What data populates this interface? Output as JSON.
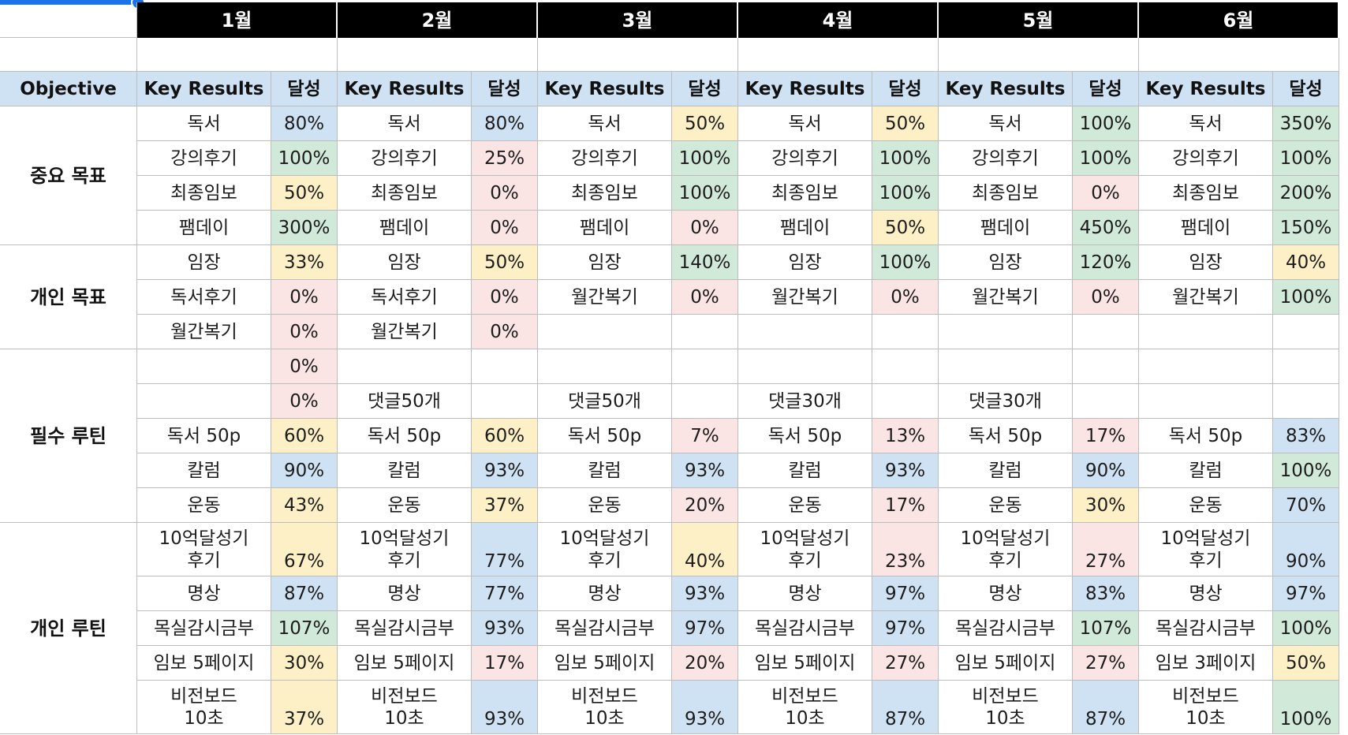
{
  "months": [
    "1월",
    "2월",
    "3월",
    "4월",
    "5월",
    "6월"
  ],
  "headers": {
    "objective": "Objective",
    "key_results": "Key Results",
    "achievement": "달성"
  },
  "colors": {
    "blue": "#cfe2f3",
    "green": "#d1e9d9",
    "yellow": "#fdf0c6",
    "pink": "#fbe4e4",
    "none": "#ffffff",
    "header": "#000000"
  },
  "groups": [
    {
      "name": "중요 목표",
      "rows": [
        0,
        3
      ]
    },
    {
      "name": "개인 목표",
      "rows": [
        4,
        6
      ]
    },
    {
      "name": "필수 루틴",
      "rows": [
        7,
        11
      ]
    },
    {
      "name": "개인 루틴",
      "rows": [
        12,
        16
      ]
    }
  ],
  "rows": [
    {
      "tall": false,
      "cells": [
        [
          "독서",
          "80%",
          "blue"
        ],
        [
          "독서",
          "80%",
          "blue"
        ],
        [
          "독서",
          "50%",
          "yellow"
        ],
        [
          "독서",
          "50%",
          "yellow"
        ],
        [
          "독서",
          "100%",
          "green"
        ],
        [
          "독서",
          "350%",
          "green"
        ]
      ]
    },
    {
      "tall": false,
      "cells": [
        [
          "강의후기",
          "100%",
          "green"
        ],
        [
          "강의후기",
          "25%",
          "pink"
        ],
        [
          "강의후기",
          "100%",
          "green"
        ],
        [
          "강의후기",
          "100%",
          "green"
        ],
        [
          "강의후기",
          "100%",
          "green"
        ],
        [
          "강의후기",
          "100%",
          "green"
        ]
      ]
    },
    {
      "tall": false,
      "cells": [
        [
          "최종임보",
          "50%",
          "yellow"
        ],
        [
          "최종임보",
          "0%",
          "pink"
        ],
        [
          "최종임보",
          "100%",
          "green"
        ],
        [
          "최종임보",
          "100%",
          "green"
        ],
        [
          "최종임보",
          "0%",
          "pink"
        ],
        [
          "최종임보",
          "200%",
          "green"
        ]
      ]
    },
    {
      "tall": false,
      "cells": [
        [
          "팸데이",
          "300%",
          "green"
        ],
        [
          "팸데이",
          "0%",
          "pink"
        ],
        [
          "팸데이",
          "0%",
          "pink"
        ],
        [
          "팸데이",
          "50%",
          "yellow"
        ],
        [
          "팸데이",
          "450%",
          "green"
        ],
        [
          "팸데이",
          "150%",
          "green"
        ]
      ]
    },
    {
      "tall": false,
      "cells": [
        [
          "임장",
          "33%",
          "yellow"
        ],
        [
          "임장",
          "50%",
          "yellow"
        ],
        [
          "임장",
          "140%",
          "green"
        ],
        [
          "임장",
          "100%",
          "green"
        ],
        [
          "임장",
          "120%",
          "green"
        ],
        [
          "임장",
          "40%",
          "yellow"
        ]
      ]
    },
    {
      "tall": false,
      "cells": [
        [
          "독서후기",
          "0%",
          "pink"
        ],
        [
          "독서후기",
          "0%",
          "pink"
        ],
        [
          "월간복기",
          "0%",
          "pink"
        ],
        [
          "월간복기",
          "0%",
          "pink"
        ],
        [
          "월간복기",
          "0%",
          "pink"
        ],
        [
          "월간복기",
          "100%",
          "green"
        ]
      ]
    },
    {
      "tall": false,
      "cells": [
        [
          "월간복기",
          "0%",
          "pink"
        ],
        [
          "월간복기",
          "0%",
          "pink"
        ],
        [
          "",
          "",
          "none"
        ],
        [
          "",
          "",
          "none"
        ],
        [
          "",
          "",
          "none"
        ],
        [
          "",
          "",
          "none"
        ]
      ]
    },
    {
      "tall": false,
      "cells": [
        [
          "",
          "0%",
          "pink"
        ],
        [
          "",
          "",
          "none"
        ],
        [
          "",
          "",
          "none"
        ],
        [
          "",
          "",
          "none"
        ],
        [
          "",
          "",
          "none"
        ],
        [
          "",
          "",
          "none"
        ]
      ]
    },
    {
      "tall": false,
      "cells": [
        [
          "",
          "0%",
          "pink"
        ],
        [
          "댓글50개",
          "",
          "none"
        ],
        [
          "댓글50개",
          "",
          "none"
        ],
        [
          "댓글30개",
          "",
          "none"
        ],
        [
          "댓글30개",
          "",
          "none"
        ],
        [
          "",
          "",
          "none"
        ]
      ]
    },
    {
      "tall": false,
      "cells": [
        [
          "독서 50p",
          "60%",
          "yellow"
        ],
        [
          "독서 50p",
          "60%",
          "yellow"
        ],
        [
          "독서 50p",
          "7%",
          "pink"
        ],
        [
          "독서 50p",
          "13%",
          "pink"
        ],
        [
          "독서 50p",
          "17%",
          "pink"
        ],
        [
          "독서 50p",
          "83%",
          "blue"
        ]
      ]
    },
    {
      "tall": false,
      "cells": [
        [
          "칼럼",
          "90%",
          "blue"
        ],
        [
          "칼럼",
          "93%",
          "blue"
        ],
        [
          "칼럼",
          "93%",
          "blue"
        ],
        [
          "칼럼",
          "93%",
          "blue"
        ],
        [
          "칼럼",
          "90%",
          "blue"
        ],
        [
          "칼럼",
          "100%",
          "green"
        ]
      ]
    },
    {
      "tall": false,
      "cells": [
        [
          "운동",
          "43%",
          "yellow"
        ],
        [
          "운동",
          "37%",
          "yellow"
        ],
        [
          "운동",
          "20%",
          "pink"
        ],
        [
          "운동",
          "17%",
          "pink"
        ],
        [
          "운동",
          "30%",
          "yellow"
        ],
        [
          "운동",
          "70%",
          "blue"
        ]
      ]
    },
    {
      "tall": true,
      "cells": [
        [
          "10억달성기\n후기",
          "67%",
          "yellow"
        ],
        [
          "10억달성기\n후기",
          "77%",
          "blue"
        ],
        [
          "10억달성기\n후기",
          "40%",
          "yellow"
        ],
        [
          "10억달성기\n후기",
          "23%",
          "pink"
        ],
        [
          "10억달성기\n후기",
          "27%",
          "pink"
        ],
        [
          "10억달성기\n후기",
          "90%",
          "blue"
        ]
      ]
    },
    {
      "tall": false,
      "cells": [
        [
          "명상",
          "87%",
          "blue"
        ],
        [
          "명상",
          "77%",
          "blue"
        ],
        [
          "명상",
          "93%",
          "blue"
        ],
        [
          "명상",
          "97%",
          "blue"
        ],
        [
          "명상",
          "83%",
          "blue"
        ],
        [
          "명상",
          "97%",
          "blue"
        ]
      ]
    },
    {
      "tall": false,
      "cells": [
        [
          "목실감시금부",
          "107%",
          "green"
        ],
        [
          "목실감시금부",
          "93%",
          "blue"
        ],
        [
          "목실감시금부",
          "97%",
          "blue"
        ],
        [
          "목실감시금부",
          "97%",
          "blue"
        ],
        [
          "목실감시금부",
          "107%",
          "green"
        ],
        [
          "목실감시금부",
          "100%",
          "green"
        ]
      ]
    },
    {
      "tall": false,
      "cells": [
        [
          "임보 5페이지",
          "30%",
          "yellow"
        ],
        [
          "임보 5페이지",
          "17%",
          "pink"
        ],
        [
          "임보 5페이지",
          "20%",
          "pink"
        ],
        [
          "임보 5페이지",
          "27%",
          "pink"
        ],
        [
          "임보 5페이지",
          "27%",
          "pink"
        ],
        [
          "임보 3페이지",
          "50%",
          "yellow"
        ]
      ]
    },
    {
      "tall": true,
      "cells": [
        [
          "비전보드\n10초",
          "37%",
          "yellow"
        ],
        [
          "비전보드\n10초",
          "93%",
          "blue"
        ],
        [
          "비전보드\n10초",
          "93%",
          "blue"
        ],
        [
          "비전보드\n10초",
          "87%",
          "blue"
        ],
        [
          "비전보드\n10초",
          "87%",
          "blue"
        ],
        [
          "비전보드\n10초",
          "100%",
          "green"
        ]
      ]
    }
  ]
}
